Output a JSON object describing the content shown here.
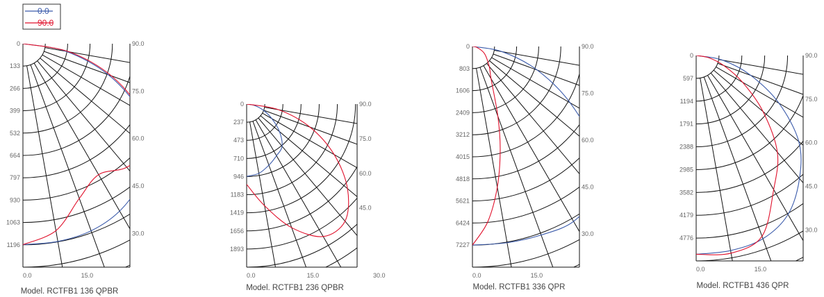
{
  "legend": [
    {
      "label": "0.0",
      "color": "#3b5bab"
    },
    {
      "label": "90.0",
      "color": "#e0102b"
    }
  ],
  "chart_data": [
    {
      "type": "polar",
      "model_label": "Model.  RCTFB1  136  QPBR",
      "radial_ticks": [
        "0",
        "133",
        "266",
        "399",
        "532",
        "664",
        "797",
        "930",
        "1063",
        "1196"
      ],
      "radial_max": 1330,
      "angle_ticks": [
        "90.0",
        "75.0",
        "60.0",
        "45.0",
        "30.0"
      ],
      "bottom_ticks": [
        "0.0",
        "15.0"
      ],
      "series": [
        {
          "name": "0.0",
          "color": "#3b5bab",
          "points": [
            [
              0,
              1196
            ],
            [
              10,
              1195
            ],
            [
              20,
              1185
            ],
            [
              30,
              1150
            ],
            [
              40,
              1080
            ],
            [
              50,
              970
            ],
            [
              60,
              800
            ],
            [
              70,
              540
            ],
            [
              80,
              260
            ],
            [
              90,
              0
            ]
          ]
        },
        {
          "name": "90.0",
          "color": "#e0102b",
          "points": [
            [
              0,
              1196
            ],
            [
              10,
              1130
            ],
            [
              20,
              980
            ],
            [
              30,
              900
            ],
            [
              40,
              960
            ],
            [
              50,
              960
            ],
            [
              60,
              810
            ],
            [
              70,
              560
            ],
            [
              80,
              280
            ],
            [
              90,
              0
            ]
          ]
        }
      ]
    },
    {
      "type": "polar",
      "model_label": "Model.  RCTFB1  236  QPBR",
      "radial_ticks": [
        "0",
        "237",
        "473",
        "710",
        "946",
        "1183",
        "1419",
        "1656",
        "1893"
      ],
      "radial_max": 2130,
      "angle_ticks": [
        "90.0",
        "75.0",
        "60.0",
        "45.0"
      ],
      "bottom_ticks": [
        "0.0",
        "15.0",
        "30.0"
      ],
      "series": [
        {
          "name": "0.0",
          "color": "#3b5bab",
          "points": [
            [
              0,
              946
            ],
            [
              10,
              920
            ],
            [
              20,
              850
            ],
            [
              30,
              780
            ],
            [
              40,
              720
            ],
            [
              50,
              560
            ],
            [
              60,
              380
            ],
            [
              70,
              230
            ],
            [
              80,
              100
            ],
            [
              90,
              0
            ]
          ]
        },
        {
          "name": "90.0",
          "color": "#e0102b",
          "points": [
            [
              0,
              1050
            ],
            [
              10,
              1350
            ],
            [
              20,
              1720
            ],
            [
              30,
              2000
            ],
            [
              40,
              2000
            ],
            [
              50,
              1720
            ],
            [
              60,
              1320
            ],
            [
              70,
              880
            ],
            [
              80,
              420
            ],
            [
              90,
              0
            ]
          ]
        }
      ]
    },
    {
      "type": "polar",
      "model_label": "Model.  RCTFB1  336  QPR",
      "radial_ticks": [
        "0",
        "803",
        "1606",
        "2409",
        "3212",
        "4015",
        "4818",
        "5621",
        "6424",
        "7227"
      ],
      "radial_max": 8030,
      "angle_ticks": [
        "90.0",
        "75.0",
        "60.0",
        "45.0",
        "30.0"
      ],
      "bottom_ticks": [
        "0.0",
        "15.0"
      ],
      "series": [
        {
          "name": "0.0",
          "color": "#3b5bab",
          "points": [
            [
              0,
              7227
            ],
            [
              10,
              7250
            ],
            [
              20,
              7300
            ],
            [
              30,
              7350
            ],
            [
              40,
              6950
            ],
            [
              50,
              5850
            ],
            [
              60,
              4100
            ],
            [
              70,
              2500
            ],
            [
              80,
              1100
            ],
            [
              90,
              0
            ]
          ]
        },
        {
          "name": "90.0",
          "color": "#e0102b",
          "points": [
            [
              0,
              7227
            ],
            [
              5,
              6400
            ],
            [
              10,
              5200
            ],
            [
              15,
              3900
            ],
            [
              20,
              2700
            ],
            [
              30,
              1350
            ],
            [
              40,
              950
            ],
            [
              60,
              500
            ],
            [
              80,
              150
            ],
            [
              90,
              0
            ]
          ]
        }
      ]
    },
    {
      "type": "polar",
      "model_label": "Model.  RCTFB1  436  QPR",
      "radial_ticks": [
        "0",
        "597",
        "1194",
        "1791",
        "2388",
        "2985",
        "3582",
        "4179",
        "4776"
      ],
      "radial_max": 5360,
      "angle_ticks": [
        "90.0",
        "75.0",
        "60.0",
        "45.0",
        "30.0"
      ],
      "bottom_ticks": [
        "0.0",
        "15.0"
      ],
      "series": [
        {
          "name": "0.0",
          "color": "#3b5bab",
          "points": [
            [
              0,
              5200
            ],
            [
              10,
              5180
            ],
            [
              20,
              5100
            ],
            [
              30,
              4800
            ],
            [
              40,
              4200
            ],
            [
              50,
              3500
            ],
            [
              60,
              2500
            ],
            [
              70,
              1520
            ],
            [
              80,
              700
            ],
            [
              90,
              0
            ]
          ]
        },
        {
          "name": "90.0",
          "color": "#e0102b",
          "points": [
            [
              0,
              5200
            ],
            [
              10,
              5250
            ],
            [
              20,
              5030
            ],
            [
              30,
              4050
            ],
            [
              40,
              3300
            ],
            [
              50,
              2280
            ],
            [
              60,
              1400
            ],
            [
              70,
              770
            ],
            [
              80,
              330
            ],
            [
              90,
              0
            ]
          ]
        }
      ]
    }
  ]
}
